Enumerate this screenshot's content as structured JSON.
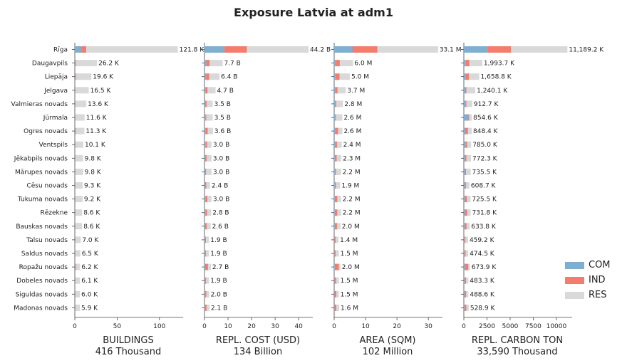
{
  "title": "Exposure Latvia at adm1",
  "colors": {
    "COM": "#7fafd0",
    "IND": "#f47c6c",
    "RES": "#d9d9d9"
  },
  "legend": [
    "COM",
    "IND",
    "RES"
  ],
  "chart_data": {
    "type": "bar",
    "orientation": "horizontal",
    "stacked": true,
    "categories": [
      "Rīga",
      "Daugavpils",
      "Liepāja",
      "Jelgava",
      "Valmieras novads",
      "Jūrmala",
      "Ogres novads",
      "Ventspils",
      "Jēkabpils novads",
      "Mārupes novads",
      "Cēsu novads",
      "Tukuma novads",
      "Rēzekne",
      "Bauskas novads",
      "Talsu novads",
      "Saldus novads",
      "Ropažu novads",
      "Dobeles novads",
      "Siguldas novads",
      "Madonas novads"
    ],
    "panels": [
      {
        "xlabel": "BUILDINGS",
        "total": "416 Thousand",
        "xlim": [
          0,
          128
        ],
        "ticks": [
          0,
          50,
          100
        ],
        "labels": [
          "121.8 K",
          "26.2 K",
          "19.6 K",
          "16.5 K",
          "13.6 K",
          "11.6 K",
          "11.3 K",
          "10.1 K",
          "9.8 K",
          "9.8 K",
          "9.3 K",
          "9.2 K",
          "8.6 K",
          "8.6 K",
          "7.0 K",
          "6.5 K",
          "6.2 K",
          "6.1 K",
          "6.0 K",
          "5.9 K"
        ],
        "series": [
          {
            "name": "COM",
            "values": [
              8,
              0.3,
              0.3,
              0.3,
              0.3,
              0.3,
              0.3,
              0.3,
              0.3,
              0.3,
              0.3,
              0.3,
              0.3,
              0.3,
              0.3,
              0.3,
              0.3,
              0.3,
              0.3,
              0.3
            ]
          },
          {
            "name": "IND",
            "values": [
              5.5,
              1.0,
              1.0,
              0.5,
              0.5,
              0.5,
              1.0,
              0.5,
              0.5,
              0.5,
              0.5,
              0.5,
              0.5,
              0.5,
              0.5,
              0.5,
              1.2,
              0.5,
              0.5,
              0.5
            ]
          },
          {
            "name": "RES",
            "values": [
              108.3,
              24.9,
              18.3,
              15.7,
              12.8,
              10.8,
              10.0,
              9.3,
              9.0,
              9.0,
              8.5,
              8.4,
              7.8,
              7.8,
              6.2,
              5.7,
              4.7,
              5.3,
              5.2,
              5.1
            ]
          }
        ]
      },
      {
        "xlabel": "REPL. COST (USD)",
        "total": "134 Billion",
        "xlim": [
          0,
          46
        ],
        "ticks": [
          0,
          10,
          20,
          30,
          40
        ],
        "labels": [
          "44.2 B",
          "7.7 B",
          "6.4 B",
          "4.7 B",
          "3.5 B",
          "3.5 B",
          "3.6 B",
          "3.0 B",
          "3.0 B",
          "3.0 B",
          "2.4 B",
          "3.0 B",
          "2.8 B",
          "2.6 B",
          "1.9 B",
          "1.9 B",
          "2.7 B",
          "1.9 B",
          "2.0 B",
          "2.1 B"
        ],
        "series": [
          {
            "name": "COM",
            "values": [
              8.5,
              0.8,
              0.7,
              0.4,
              0.6,
              0.5,
              0.4,
              0.5,
              0.3,
              0.3,
              0.3,
              0.4,
              0.4,
              0.3,
              0.2,
              0.2,
              0.3,
              0.2,
              0.2,
              0.2
            ]
          },
          {
            "name": "IND",
            "values": [
              9.5,
              1.4,
              1.3,
              0.9,
              0.3,
              0.3,
              1.0,
              0.6,
              0.6,
              0.4,
              0.5,
              0.8,
              0.7,
              0.7,
              0.4,
              0.4,
              1.2,
              0.5,
              0.6,
              0.7
            ]
          },
          {
            "name": "RES",
            "values": [
              26.2,
              5.5,
              4.4,
              3.4,
              2.6,
              2.7,
              2.2,
              1.9,
              2.1,
              2.3,
              1.6,
              1.8,
              1.7,
              1.6,
              1.3,
              1.3,
              1.2,
              1.2,
              1.2,
              1.2
            ]
          }
        ]
      },
      {
        "xlabel": "AREA (SQM)",
        "total": "102 Million",
        "xlim": [
          0,
          34.5
        ],
        "ticks": [
          0,
          10,
          20,
          30
        ],
        "labels": [
          "33.1 M",
          "6.0 M",
          "5.0 M",
          "3.7 M",
          "2.8 M",
          "2.6 M",
          "2.6 M",
          "2.4 M",
          "2.3 M",
          "2.2 M",
          "1.9 M",
          "2.2 M",
          "2.2 M",
          "2.0 M",
          "1.4 M",
          "1.5 M",
          "2.0 M",
          "1.5 M",
          "1.5 M",
          "1.6 M"
        ],
        "series": [
          {
            "name": "COM",
            "values": [
              5.9,
              0.5,
              0.4,
              0.3,
              0.4,
              0.3,
              0.3,
              0.3,
              0.2,
              0.2,
              0.2,
              0.2,
              0.2,
              0.2,
              0.1,
              0.1,
              0.2,
              0.1,
              0.1,
              0.1
            ]
          },
          {
            "name": "IND",
            "values": [
              7.9,
              1.3,
              1.3,
              0.8,
              0.3,
              0.3,
              1.0,
              0.6,
              0.6,
              0.4,
              0.4,
              0.8,
              0.8,
              0.7,
              0.4,
              0.4,
              1.3,
              0.5,
              0.6,
              0.6
            ]
          },
          {
            "name": "RES",
            "values": [
              19.3,
              4.2,
              3.3,
              2.6,
              2.1,
              2.0,
              1.3,
              1.5,
              1.5,
              1.6,
              1.3,
              1.2,
              1.2,
              1.1,
              0.9,
              1.0,
              0.5,
              0.9,
              0.8,
              0.9
            ]
          }
        ]
      },
      {
        "xlabel": "REPL. CARBON TON",
        "total": "33,590 Thousand",
        "xlim": [
          0,
          11700
        ],
        "ticks": [
          0,
          2500,
          5000,
          7500,
          10000
        ],
        "labels": [
          "11,189.2 K",
          "1,993.7 K",
          "1,658.8 K",
          "1,240.1 K",
          "912.7 K",
          "854.6 K",
          "848.4 K",
          "785.0 K",
          "772.3 K",
          "735.5 K",
          "608.7 K",
          "725.5 K",
          "731.8 K",
          "633.8 K",
          "459.2 K",
          "474.5 K",
          "673.9 K",
          "483.3 K",
          "488.6 K",
          "528.9 K"
        ],
        "series": [
          {
            "name": "COM",
            "values": [
              2550,
              220,
              200,
              150,
              200,
              500,
              150,
              180,
              120,
              120,
              100,
              110,
              120,
              100,
              60,
              60,
              110,
              70,
              80,
              80
            ]
          },
          {
            "name": "IND",
            "values": [
              2550,
              380,
              350,
              130,
              80,
              80,
              300,
              170,
              170,
              130,
              130,
              220,
              250,
              200,
              120,
              130,
              380,
              160,
              170,
              200
            ]
          },
          {
            "name": "RES",
            "values": [
              6089.2,
              1393.7,
              1108.8,
              960.1,
              632.7,
              274.6,
              398.4,
              435.0,
              482.3,
              485.5,
              378.7,
              395.5,
              361.8,
              333.8,
              279.2,
              284.5,
              183.9,
              253.3,
              238.6,
              248.9
            ]
          }
        ]
      }
    ]
  }
}
